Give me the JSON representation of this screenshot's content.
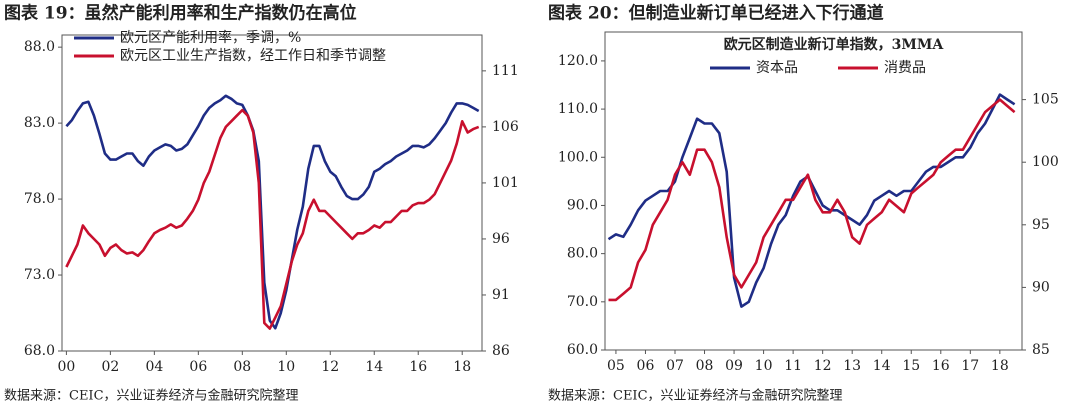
{
  "chart_data": [
    {
      "type": "line",
      "title": "图表 19：虽然产能利用率和生产指数仍在高位",
      "source": "数据来源：CEIC，兴业证券经济与金融研究院整理",
      "x": [
        2000,
        2000.25,
        2000.5,
        2000.75,
        2001,
        2001.25,
        2001.5,
        2001.75,
        2002,
        2002.25,
        2002.5,
        2002.75,
        2003,
        2003.25,
        2003.5,
        2003.75,
        2004,
        2004.25,
        2004.5,
        2004.75,
        2005,
        2005.25,
        2005.5,
        2005.75,
        2006,
        2006.25,
        2006.5,
        2006.75,
        2007,
        2007.25,
        2007.5,
        2007.75,
        2008,
        2008.25,
        2008.5,
        2008.75,
        2009,
        2009.25,
        2009.5,
        2009.75,
        2010,
        2010.25,
        2010.5,
        2010.75,
        2011,
        2011.25,
        2011.5,
        2011.75,
        2012,
        2012.25,
        2012.5,
        2012.75,
        2013,
        2013.25,
        2013.5,
        2013.75,
        2014,
        2014.25,
        2014.5,
        2014.75,
        2015,
        2015.25,
        2015.5,
        2015.75,
        2016,
        2016.25,
        2016.5,
        2016.75,
        2017,
        2017.25,
        2017.5,
        2017.75,
        2018,
        2018.25,
        2018.5,
        2018.75
      ],
      "series": [
        {
          "name": "欧元区产能利用率，季调，%",
          "color": "#1f2d86",
          "values": [
            82.8,
            83.2,
            83.8,
            84.3,
            84.4,
            83.5,
            82.3,
            81.0,
            80.6,
            80.6,
            80.8,
            81.0,
            81.0,
            80.5,
            80.2,
            80.8,
            81.2,
            81.4,
            81.6,
            81.5,
            81.2,
            81.3,
            81.6,
            82.2,
            82.8,
            83.5,
            84.0,
            84.3,
            84.5,
            84.8,
            84.6,
            84.3,
            84.2,
            83.5,
            82.5,
            80.5,
            72.5,
            70.0,
            69.5,
            70.5,
            72,
            74,
            76,
            77.5,
            80,
            81.5,
            81.5,
            80.5,
            79.8,
            79.5,
            78.8,
            78.2,
            78,
            78,
            78.3,
            78.8,
            79.8,
            80,
            80.3,
            80.5,
            80.8,
            81,
            81.2,
            81.5,
            81.5,
            81.4,
            81.6,
            82,
            82.5,
            83,
            83.7,
            84.3,
            84.3,
            84.2,
            84,
            83.8
          ]
        },
        {
          "name": "欧元区工业生产指数，经工作日和季节调整",
          "color": "#c8102e",
          "axis": "y2",
          "values": [
            93.5,
            94.5,
            95.5,
            97.2,
            96.5,
            96,
            95.5,
            94.5,
            95.2,
            95.5,
            95,
            94.7,
            94.8,
            94.5,
            95,
            95.8,
            96.5,
            96.8,
            97,
            97.3,
            97,
            97.2,
            97.8,
            98.5,
            99.5,
            101,
            102,
            103.5,
            105,
            106,
            106.5,
            107,
            107.5,
            107,
            105.5,
            101,
            88.5,
            88,
            89,
            90,
            92,
            94,
            95.5,
            96.5,
            98.5,
            99.5,
            98.5,
            98.5,
            98,
            97.5,
            97,
            96.5,
            96,
            96.5,
            96.5,
            96.8,
            97.2,
            97,
            97.5,
            97.5,
            98,
            98.5,
            98.5,
            99,
            99.2,
            99.2,
            99.5,
            100,
            101,
            102,
            103,
            104.5,
            106.5,
            105.5,
            105.8,
            106
          ]
        }
      ],
      "xlim": [
        1999.8,
        2018.9
      ],
      "xticks": [
        {
          "value": 2000,
          "label": "00"
        },
        {
          "value": 2002,
          "label": "02"
        },
        {
          "value": 2004,
          "label": "04"
        },
        {
          "value": 2006,
          "label": "06"
        },
        {
          "value": 2008,
          "label": "08"
        },
        {
          "value": 2010,
          "label": "10"
        },
        {
          "value": 2012,
          "label": "12"
        },
        {
          "value": 2014,
          "label": "14"
        },
        {
          "value": 2016,
          "label": "16"
        },
        {
          "value": 2018,
          "label": "18"
        }
      ],
      "ylim": [
        68,
        88.8
      ],
      "yticks": [
        {
          "value": 68,
          "label": "68.0"
        },
        {
          "value": 73,
          "label": "73.0"
        },
        {
          "value": 78,
          "label": "78.0"
        },
        {
          "value": 83,
          "label": "83.0"
        },
        {
          "value": 88,
          "label": "88.0"
        }
      ],
      "y2lim": [
        86,
        114.2
      ],
      "y2ticks": [
        86,
        91,
        96,
        101,
        106,
        111
      ],
      "legend": "top-left"
    },
    {
      "type": "line",
      "title": "图表 20：但制造业新订单已经进入下行通道",
      "subtitle": "欧元区制造业新订单指数，3MMA",
      "source": "数据来源：CEIC，兴业证券经济与金融研究院整理",
      "x": [
        2004.75,
        2005,
        2005.25,
        2005.5,
        2005.75,
        2006,
        2006.25,
        2006.5,
        2006.75,
        2007,
        2007.25,
        2007.5,
        2007.75,
        2008,
        2008.25,
        2008.5,
        2008.75,
        2009,
        2009.25,
        2009.5,
        2009.75,
        2010,
        2010.25,
        2010.5,
        2010.75,
        2011,
        2011.25,
        2011.5,
        2011.75,
        2012,
        2012.25,
        2012.5,
        2012.75,
        2013,
        2013.25,
        2013.5,
        2013.75,
        2014,
        2014.25,
        2014.5,
        2014.75,
        2015,
        2015.25,
        2015.5,
        2015.75,
        2016,
        2016.25,
        2016.5,
        2016.75,
        2017,
        2017.25,
        2017.5,
        2017.75,
        2018,
        2018.25,
        2018.5
      ],
      "series": [
        {
          "name": "资本品",
          "color": "#1f2d86",
          "values": [
            83,
            84,
            83.5,
            86,
            89,
            91,
            92,
            93,
            93,
            95,
            100,
            104,
            108,
            107,
            107,
            105,
            97,
            75,
            69,
            70,
            74,
            77,
            82,
            86,
            88,
            92,
            95,
            96,
            93,
            90,
            89,
            89,
            88,
            87,
            86,
            88,
            91,
            92,
            93,
            92,
            93,
            93,
            95,
            97,
            98,
            98,
            99,
            100,
            100,
            102,
            105,
            107,
            110,
            113,
            112,
            111
          ]
        },
        {
          "name": "消费品",
          "color": "#c8102e",
          "axis": "y2",
          "values": [
            89,
            89,
            89.5,
            90,
            92,
            93,
            95,
            96,
            97,
            99,
            100,
            99,
            101,
            101,
            100,
            98,
            94,
            91,
            90,
            91,
            92,
            94,
            95,
            96,
            97,
            97,
            98,
            99,
            97,
            96,
            96,
            97,
            96,
            94,
            93.5,
            95,
            95.5,
            96,
            97,
            96.5,
            96,
            97.5,
            98,
            98.5,
            99,
            100,
            100.5,
            101,
            101,
            102,
            103,
            104,
            104.5,
            105,
            104.5,
            104
          ]
        }
      ],
      "xlim": [
        2004.63,
        2018.75
      ],
      "xticks": [
        {
          "value": 2005,
          "label": "05"
        },
        {
          "value": 2006,
          "label": "06"
        },
        {
          "value": 2007,
          "label": "07"
        },
        {
          "value": 2008,
          "label": "08"
        },
        {
          "value": 2009,
          "label": "09"
        },
        {
          "value": 2010,
          "label": "10"
        },
        {
          "value": 2011,
          "label": "11"
        },
        {
          "value": 2012,
          "label": "12"
        },
        {
          "value": 2013,
          "label": "13"
        },
        {
          "value": 2014,
          "label": "14"
        },
        {
          "value": 2015,
          "label": "15"
        },
        {
          "value": 2016,
          "label": "16"
        },
        {
          "value": 2017,
          "label": "17"
        },
        {
          "value": 2018,
          "label": "18"
        }
      ],
      "ylim": [
        60,
        126
      ],
      "yticks": [
        {
          "value": 60,
          "label": "60.0"
        },
        {
          "value": 70,
          "label": "70.0"
        },
        {
          "value": 80,
          "label": "80.0"
        },
        {
          "value": 90,
          "label": "90.0"
        },
        {
          "value": 100,
          "label": "100.0"
        },
        {
          "value": 110,
          "label": "110.0"
        },
        {
          "value": 120,
          "label": "120.0"
        }
      ],
      "y2lim": [
        85,
        110.4
      ],
      "y2ticks": [
        85,
        90,
        95,
        100,
        105
      ],
      "legend": "top-center"
    }
  ]
}
